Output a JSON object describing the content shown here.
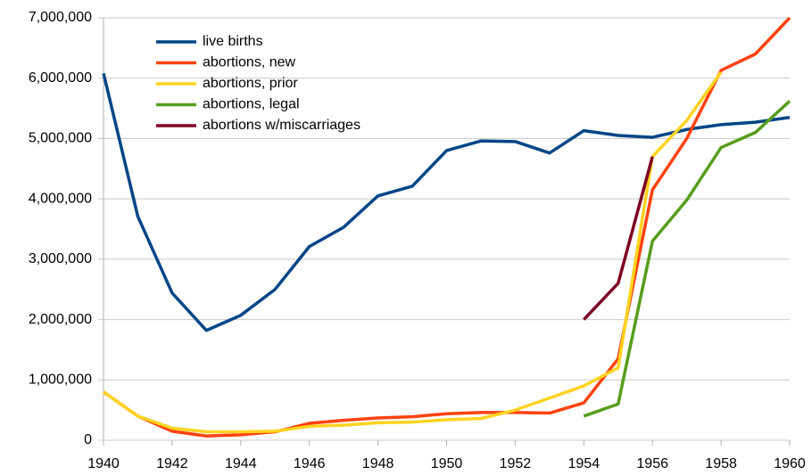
{
  "chart_data": {
    "type": "line",
    "x": [
      1940,
      1941,
      1942,
      1943,
      1944,
      1945,
      1946,
      1947,
      1948,
      1949,
      1950,
      1951,
      1952,
      1953,
      1954,
      1955,
      1956,
      1957,
      1958,
      1959,
      1960
    ],
    "series": [
      {
        "name": "live births",
        "color": "#004586",
        "values": [
          6080000,
          3710000,
          2440000,
          1820000,
          2070000,
          2500000,
          3210000,
          3530000,
          4050000,
          4210000,
          4800000,
          4960000,
          4950000,
          4760000,
          5130000,
          5050000,
          5020000,
          5150000,
          5230000,
          5270000,
          5350000
        ]
      },
      {
        "name": "abortions, new",
        "color": "#ff420e",
        "values": [
          800000,
          400000,
          150000,
          70000,
          90000,
          140000,
          280000,
          330000,
          370000,
          390000,
          440000,
          460000,
          460000,
          450000,
          620000,
          1350000,
          4150000,
          5000000,
          6130000,
          6400000,
          7000000
        ]
      },
      {
        "name": "abortions, prior",
        "color": "#ffd320",
        "values": [
          800000,
          400000,
          200000,
          140000,
          140000,
          150000,
          230000,
          250000,
          290000,
          300000,
          340000,
          360000,
          500000,
          700000,
          900000,
          1200000,
          4700000,
          5300000,
          6100000,
          null,
          null
        ]
      },
      {
        "name": "abortions, legal",
        "color": "#579d1c",
        "values": [
          null,
          null,
          null,
          null,
          null,
          null,
          null,
          null,
          null,
          null,
          null,
          null,
          null,
          null,
          400000,
          600000,
          3300000,
          3980000,
          4850000,
          5100000,
          5620000
        ]
      },
      {
        "name": "abortions w/miscarriages",
        "color": "#7e0021",
        "values": [
          null,
          null,
          null,
          null,
          null,
          null,
          null,
          null,
          null,
          null,
          null,
          null,
          null,
          null,
          2000000,
          2600000,
          4700000,
          null,
          null,
          null,
          null
        ]
      }
    ],
    "xlim": [
      1940,
      1960
    ],
    "xticks": [
      1940,
      1942,
      1944,
      1946,
      1948,
      1950,
      1952,
      1954,
      1956,
      1958,
      1960
    ],
    "ylim": [
      0,
      7000000
    ],
    "yticks": [
      0,
      {
        "value": 1000000,
        "label": "1,000,000"
      },
      {
        "value": 2000000,
        "label": "2,000,000"
      },
      {
        "value": 3000000,
        "label": "3,000,000"
      },
      {
        "value": 4000000,
        "label": "4,000,000"
      },
      {
        "value": 5000000,
        "label": "5,000,000"
      },
      {
        "value": 6000000,
        "label": "6,000,000"
      },
      {
        "value": 7000000,
        "label": "7,000,000"
      }
    ],
    "grid": true,
    "legend": "top-left"
  }
}
